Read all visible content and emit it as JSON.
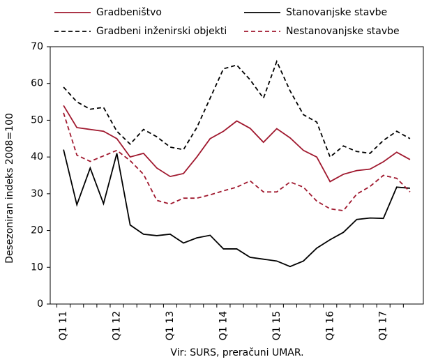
{
  "chart_data": {
    "type": "line",
    "y_label": "Desezoniran indeks 2008=100",
    "source": "Vir: SURS, preračuni UMAR.",
    "categories": [
      "Q1 11",
      null,
      null,
      null,
      "Q1 12",
      null,
      null,
      null,
      "Q1 13",
      null,
      null,
      null,
      "Q1 14",
      null,
      null,
      null,
      "Q1 15",
      null,
      null,
      null,
      "Q1 16",
      null,
      null,
      null,
      "Q1 17",
      null,
      null
    ],
    "series": [
      {
        "name": "Gradbeništvo",
        "color": "#a0182e",
        "dashed": false,
        "values": [
          54,
          48,
          47.5,
          47,
          45,
          40,
          41,
          37,
          34.7,
          35.5,
          40,
          45,
          47,
          49.8,
          47.8,
          44,
          47.7,
          45.2,
          41.8,
          40,
          33.3,
          35.3,
          36.3,
          36.7,
          38.7,
          41.3,
          39.3
        ]
      },
      {
        "name": "Stanovanjske stavbe",
        "color": "#000000",
        "dashed": false,
        "values": [
          42,
          27,
          37,
          27.3,
          41,
          21.5,
          19,
          18.6,
          19,
          16.6,
          18,
          18.7,
          15,
          15,
          12.7,
          12.2,
          11.7,
          10.2,
          11.7,
          15.2,
          17.5,
          19.5,
          23,
          23.4,
          23.3,
          31.8,
          31.5
        ]
      },
      {
        "name": "Gradbeni inženirski objekti",
        "color": "#000000",
        "dashed": true,
        "values": [
          59,
          55,
          53,
          53.5,
          47,
          43.5,
          47.5,
          45.5,
          42.7,
          42,
          48,
          56,
          64,
          65,
          61,
          56,
          66,
          58,
          51.5,
          49.5,
          40,
          43,
          41.5,
          41,
          44.5,
          47,
          45
        ]
      },
      {
        "name": "Nestanovanjske stavbe",
        "color": "#a0182e",
        "dashed": true,
        "values": [
          52,
          40.5,
          38.8,
          40.3,
          41.8,
          39,
          35.3,
          28.2,
          27.2,
          28.8,
          28.8,
          29.7,
          30.8,
          31.8,
          33.5,
          30.5,
          30.5,
          33.2,
          31.8,
          28,
          25.9,
          25.4,
          29.9,
          32,
          35,
          34.2,
          30.5
        ]
      }
    ],
    "ylim": [
      0,
      70
    ],
    "yticks": [
      0,
      10,
      20,
      30,
      40,
      50,
      60,
      70
    ]
  }
}
